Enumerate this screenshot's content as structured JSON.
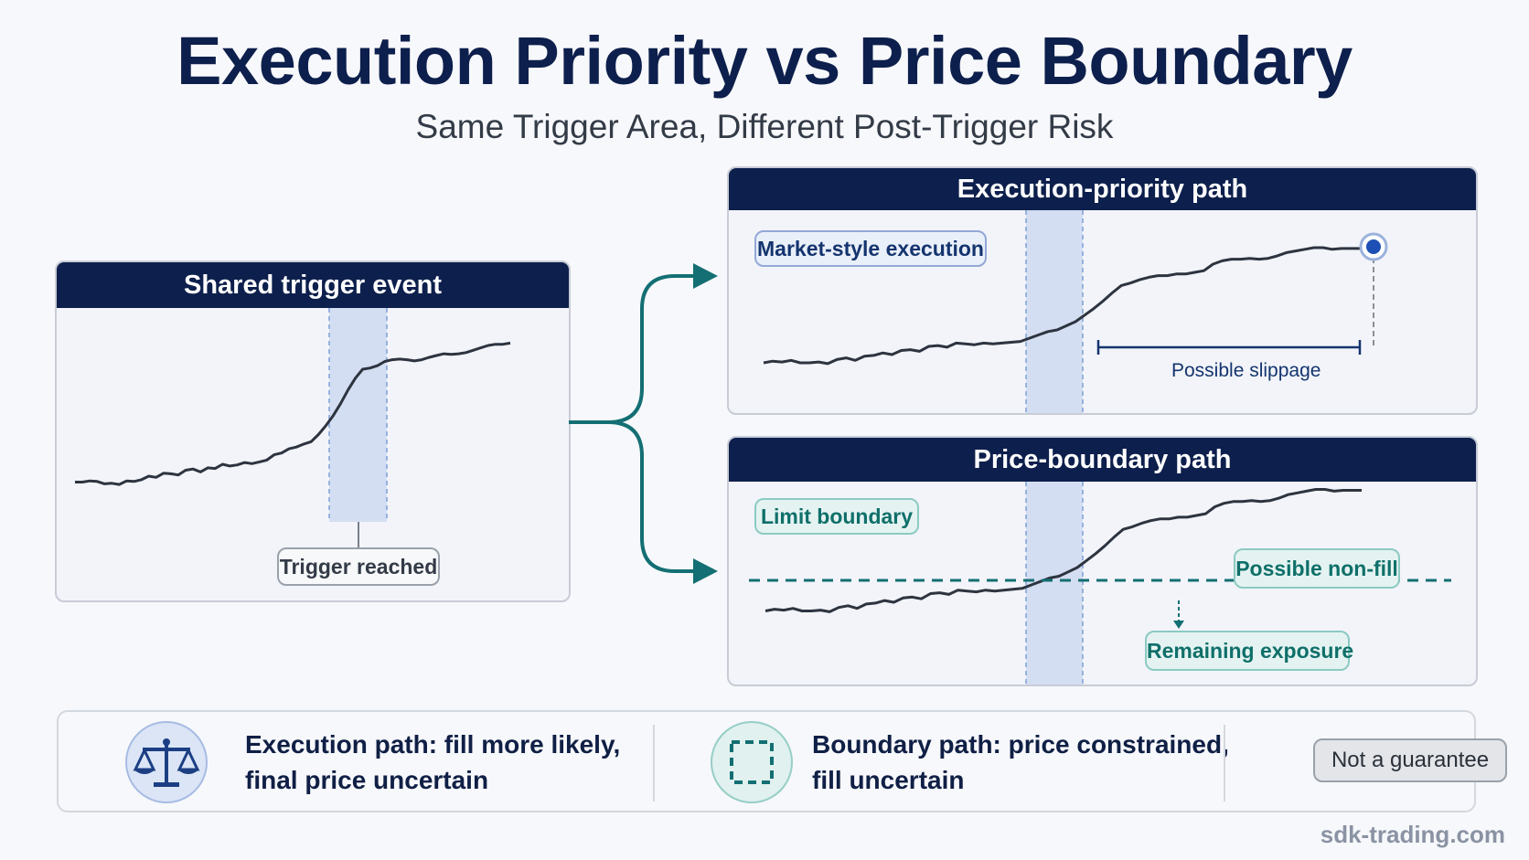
{
  "header": {
    "title": "Execution Priority vs Price Boundary",
    "subtitle": "Same Trigger Area, Different Post-Trigger Risk"
  },
  "shared_panel": {
    "title": "Shared trigger event",
    "callout": "Trigger reached",
    "series": [
      [
        0,
        30
      ],
      [
        1,
        30
      ],
      [
        2,
        32
      ],
      [
        3,
        31
      ],
      [
        4,
        27
      ],
      [
        5,
        28
      ],
      [
        6,
        26
      ],
      [
        7,
        32
      ],
      [
        8,
        31
      ],
      [
        9,
        34
      ],
      [
        10,
        40
      ],
      [
        11,
        38
      ],
      [
        12,
        45
      ],
      [
        13,
        44
      ],
      [
        14,
        42
      ],
      [
        15,
        50
      ],
      [
        16,
        52
      ],
      [
        17,
        47
      ],
      [
        18,
        54
      ],
      [
        19,
        53
      ],
      [
        20,
        60
      ],
      [
        21,
        57
      ],
      [
        22,
        59
      ],
      [
        23,
        63
      ],
      [
        24,
        61
      ],
      [
        25,
        64
      ],
      [
        26,
        67
      ],
      [
        27,
        76
      ],
      [
        28,
        79
      ],
      [
        29,
        86
      ],
      [
        30,
        89
      ],
      [
        31,
        94
      ],
      [
        32,
        98
      ],
      [
        33,
        110
      ],
      [
        34,
        125
      ],
      [
        35,
        142
      ],
      [
        36,
        162
      ],
      [
        37,
        185
      ],
      [
        38,
        205
      ],
      [
        39,
        220
      ],
      [
        40,
        222
      ],
      [
        41,
        226
      ],
      [
        42,
        233
      ],
      [
        43,
        236
      ],
      [
        44,
        237
      ],
      [
        45,
        236
      ],
      [
        46,
        234
      ],
      [
        47,
        236
      ],
      [
        48,
        240
      ],
      [
        49,
        243
      ],
      [
        50,
        246
      ],
      [
        51,
        245
      ],
      [
        52,
        246
      ],
      [
        53,
        248
      ],
      [
        54,
        252
      ],
      [
        55,
        256
      ],
      [
        56,
        260
      ],
      [
        57,
        262
      ],
      [
        58,
        262
      ],
      [
        59,
        264
      ]
    ]
  },
  "execution_panel": {
    "title": "Execution-priority path",
    "tag": "Market-style execution",
    "note": "Possible slippage",
    "series": [
      [
        0,
        30
      ],
      [
        1,
        32
      ],
      [
        2,
        31
      ],
      [
        3,
        33
      ],
      [
        4,
        30
      ],
      [
        5,
        30
      ],
      [
        6,
        31
      ],
      [
        7,
        29
      ],
      [
        8,
        34
      ],
      [
        9,
        36
      ],
      [
        10,
        33
      ],
      [
        11,
        38
      ],
      [
        12,
        39
      ],
      [
        13,
        42
      ],
      [
        14,
        40
      ],
      [
        15,
        45
      ],
      [
        16,
        46
      ],
      [
        17,
        44
      ],
      [
        18,
        50
      ],
      [
        19,
        51
      ],
      [
        20,
        49
      ],
      [
        21,
        54
      ],
      [
        22,
        53
      ],
      [
        23,
        52
      ],
      [
        24,
        54
      ],
      [
        25,
        53
      ],
      [
        26,
        54
      ],
      [
        27,
        55
      ],
      [
        28,
        56
      ],
      [
        29,
        60
      ],
      [
        30,
        64
      ],
      [
        31,
        68
      ],
      [
        32,
        70
      ],
      [
        33,
        75
      ],
      [
        34,
        80
      ],
      [
        35,
        88
      ],
      [
        36,
        96
      ],
      [
        37,
        105
      ],
      [
        38,
        115
      ],
      [
        39,
        124
      ],
      [
        40,
        127
      ],
      [
        41,
        131
      ],
      [
        42,
        134
      ],
      [
        43,
        136
      ],
      [
        44,
        136
      ],
      [
        45,
        138
      ],
      [
        46,
        138
      ],
      [
        47,
        140
      ],
      [
        48,
        142
      ],
      [
        49,
        150
      ],
      [
        50,
        154
      ],
      [
        51,
        156
      ],
      [
        52,
        156
      ],
      [
        53,
        157
      ],
      [
        54,
        156
      ],
      [
        55,
        157
      ],
      [
        56,
        160
      ],
      [
        57,
        164
      ],
      [
        58,
        166
      ],
      [
        59,
        168
      ],
      [
        60,
        170
      ],
      [
        61,
        170
      ],
      [
        62,
        168
      ],
      [
        63,
        169
      ],
      [
        64,
        169
      ],
      [
        65,
        169
      ]
    ]
  },
  "boundary_panel": {
    "title": "Price-boundary path",
    "tag": "Limit boundary",
    "note_nonfill": "Possible non-fill",
    "note_exposure": "Remaining exposure",
    "series": [
      [
        0,
        30
      ],
      [
        1,
        32
      ],
      [
        2,
        31
      ],
      [
        3,
        33
      ],
      [
        4,
        30
      ],
      [
        5,
        30
      ],
      [
        6,
        31
      ],
      [
        7,
        29
      ],
      [
        8,
        34
      ],
      [
        9,
        36
      ],
      [
        10,
        33
      ],
      [
        11,
        38
      ],
      [
        12,
        39
      ],
      [
        13,
        42
      ],
      [
        14,
        40
      ],
      [
        15,
        45
      ],
      [
        16,
        46
      ],
      [
        17,
        44
      ],
      [
        18,
        50
      ],
      [
        19,
        51
      ],
      [
        20,
        49
      ],
      [
        21,
        54
      ],
      [
        22,
        53
      ],
      [
        23,
        52
      ],
      [
        24,
        54
      ],
      [
        25,
        53
      ],
      [
        26,
        54
      ],
      [
        27,
        55
      ],
      [
        28,
        56
      ],
      [
        29,
        60
      ],
      [
        30,
        64
      ],
      [
        31,
        68
      ],
      [
        32,
        70
      ],
      [
        33,
        75
      ],
      [
        34,
        80
      ],
      [
        35,
        88
      ],
      [
        36,
        96
      ],
      [
        37,
        105
      ],
      [
        38,
        115
      ],
      [
        39,
        124
      ],
      [
        40,
        127
      ],
      [
        41,
        131
      ],
      [
        42,
        134
      ],
      [
        43,
        136
      ],
      [
        44,
        136
      ],
      [
        45,
        138
      ],
      [
        46,
        138
      ],
      [
        47,
        140
      ],
      [
        48,
        142
      ],
      [
        49,
        150
      ],
      [
        50,
        154
      ],
      [
        51,
        156
      ],
      [
        52,
        156
      ],
      [
        53,
        157
      ],
      [
        54,
        156
      ],
      [
        55,
        157
      ],
      [
        56,
        160
      ],
      [
        57,
        164
      ],
      [
        58,
        166
      ],
      [
        59,
        168
      ],
      [
        60,
        170
      ],
      [
        61,
        170
      ],
      [
        62,
        168
      ],
      [
        63,
        169
      ],
      [
        64,
        169
      ],
      [
        65,
        169
      ]
    ],
    "boundary_level": 80
  },
  "summary": {
    "execution_line1": "Execution path: fill more likely,",
    "execution_line2": "final price uncertain",
    "boundary_line1": "Boundary path: price constrained,",
    "boundary_line2": "fill uncertain",
    "badge": "Not a guarantee"
  },
  "footer": {
    "watermark": "sdk-trading.com"
  },
  "colors": {
    "navy": "#0d1f4c",
    "teal": "#136f73",
    "trigger_band": "#c9d7ef",
    "line": "#2d3440"
  },
  "icons": {
    "execution": "balance-scale-icon",
    "boundary": "dashed-square-icon"
  }
}
